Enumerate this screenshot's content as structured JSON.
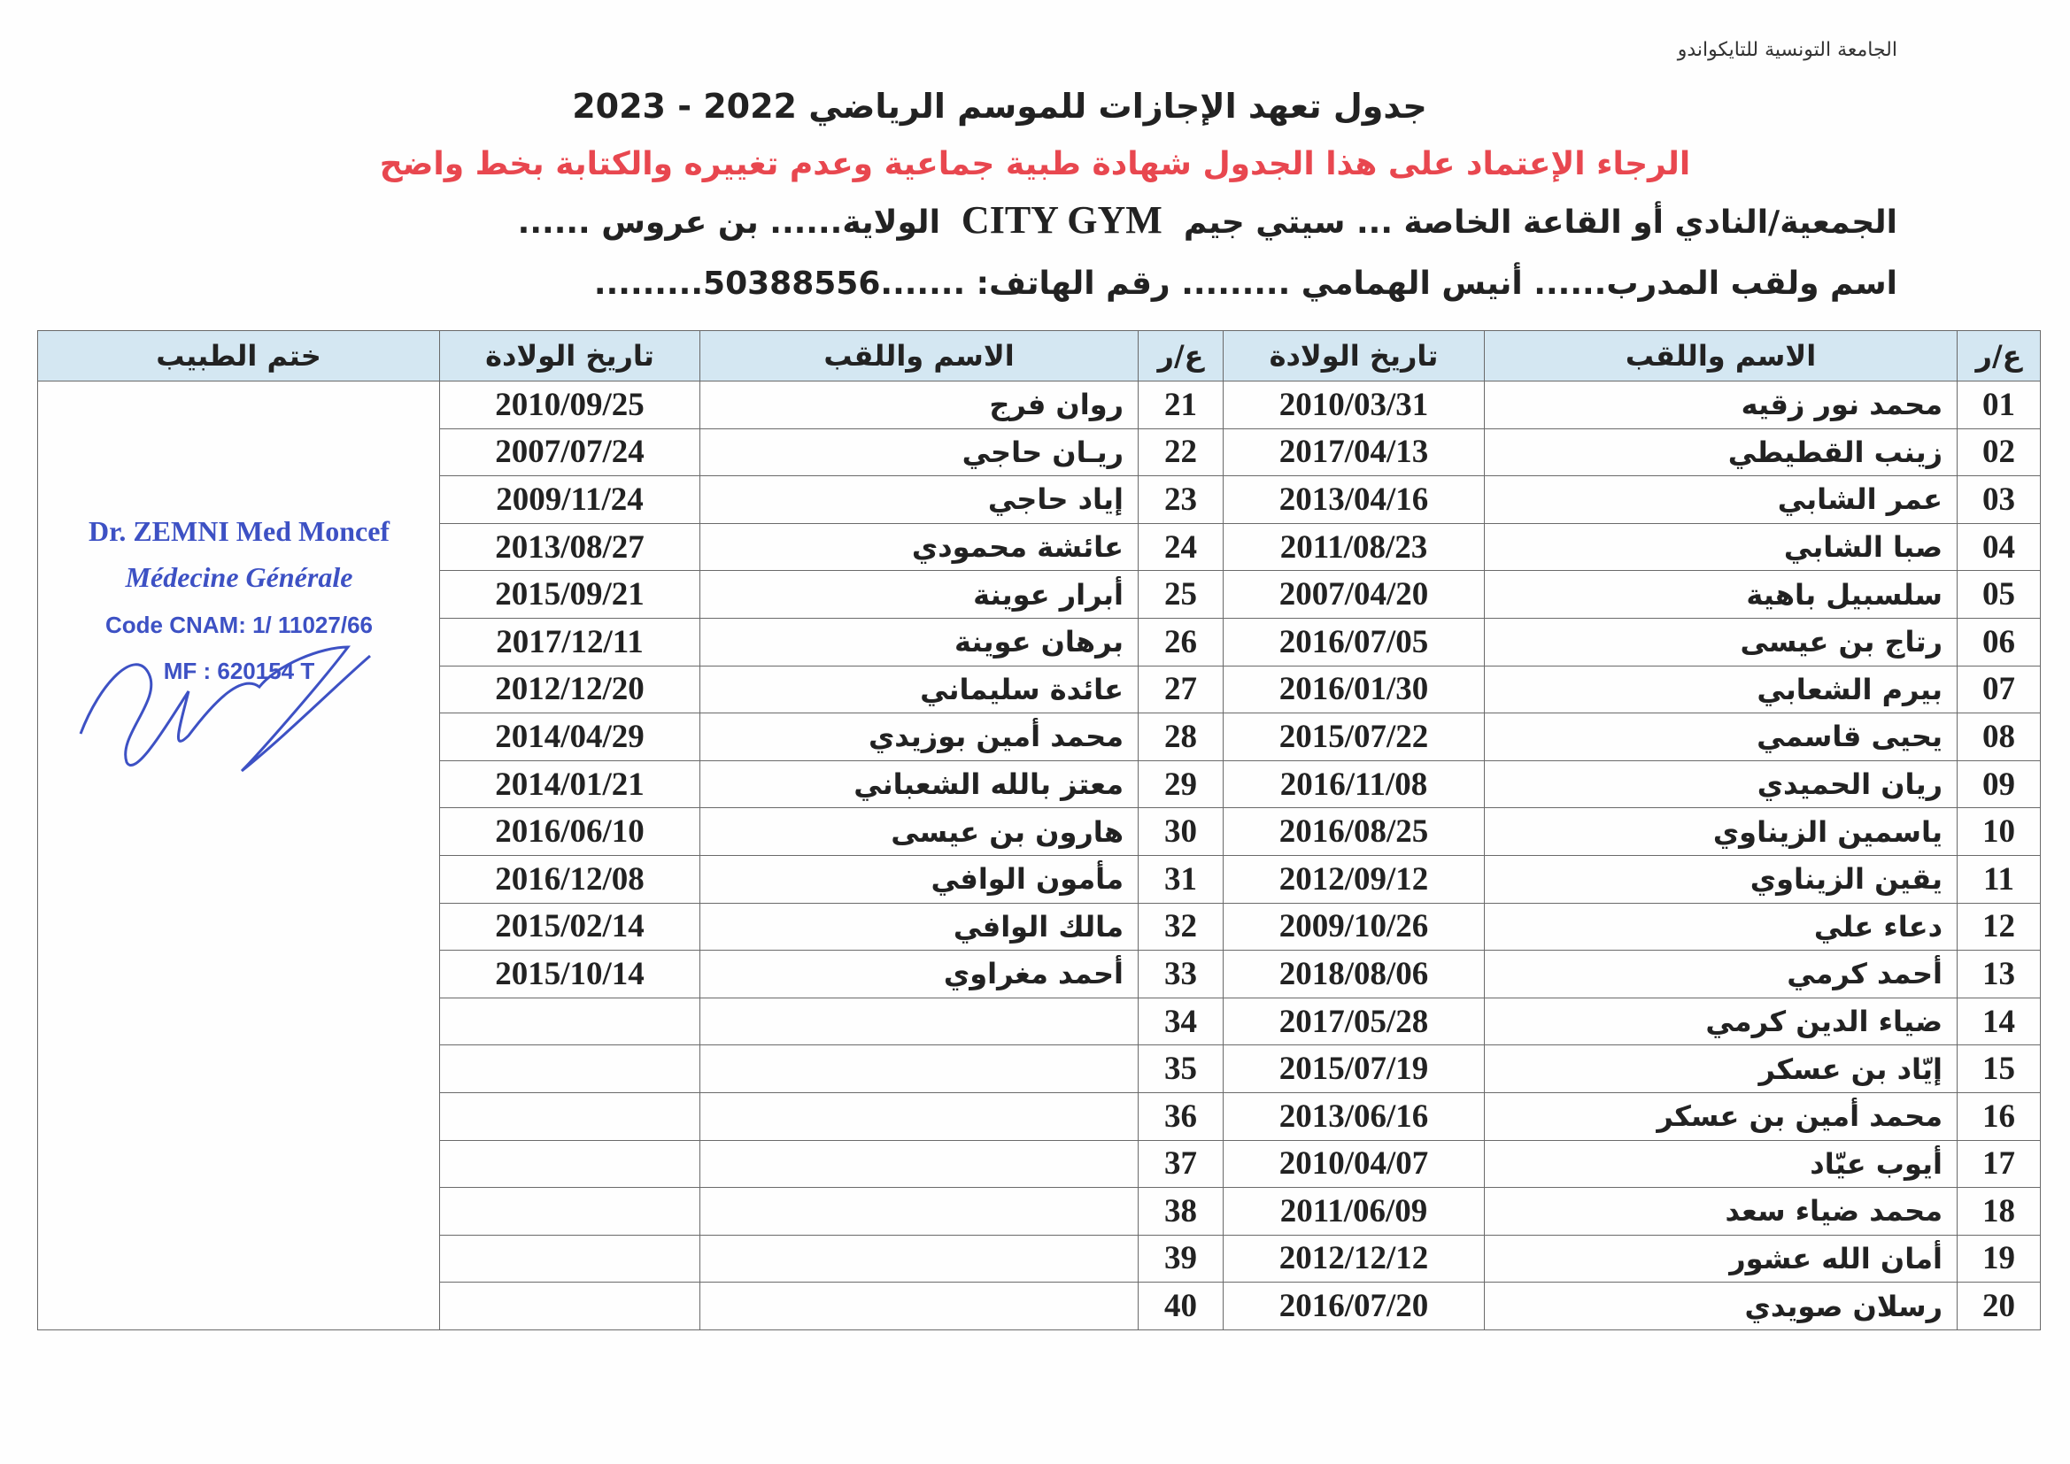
{
  "header": {
    "federation": "الجامعة التونسية للتايكواندو",
    "title": "جدول تعهد الإجازات للموسم الرياضي 2022 - 2023",
    "notice": "الرجاء الإعتماد على هذا الجدول شهادة طبية جماعية وعدم تغييره والكتابة بخط واضح",
    "club_line_prefix": "الجمعية/النادي أو القاعة الخاصة ... سيتي جيم",
    "club_latin": "CITY GYM",
    "club_line_suffix": "الولاية...... بن عروس ......",
    "coach_line": "اسم ولقب المدرب...... أنيس الهمامي ......... رقم الهاتف: .......50388556........."
  },
  "table": {
    "columns": {
      "num": "ع/ر",
      "name": "الاسم واللقب",
      "dob": "تاريخ الولادة",
      "stamp": "ختم الطبيب"
    },
    "left_group": [
      {
        "num": "01",
        "name": "محمد نور زقيه",
        "dob": "2010/03/31"
      },
      {
        "num": "02",
        "name": "زينب القطيطي",
        "dob": "2017/04/13"
      },
      {
        "num": "03",
        "name": "عمر الشابي",
        "dob": "2013/04/16"
      },
      {
        "num": "04",
        "name": "صبا الشابي",
        "dob": "2011/08/23"
      },
      {
        "num": "05",
        "name": "سلسبيل باهية",
        "dob": "2007/04/20"
      },
      {
        "num": "06",
        "name": "رتاج بن عيسى",
        "dob": "2016/07/05"
      },
      {
        "num": "07",
        "name": "بيرم الشعابي",
        "dob": "2016/01/30"
      },
      {
        "num": "08",
        "name": "يحيى قاسمي",
        "dob": "2015/07/22"
      },
      {
        "num": "09",
        "name": "ريان الحميدي",
        "dob": "2016/11/08"
      },
      {
        "num": "10",
        "name": "ياسمين الزيناوي",
        "dob": "2016/08/25"
      },
      {
        "num": "11",
        "name": "يقين الزيناوي",
        "dob": "2012/09/12"
      },
      {
        "num": "12",
        "name": "دعاء علي",
        "dob": "2009/10/26"
      },
      {
        "num": "13",
        "name": "أحمد كرمي",
        "dob": "2018/08/06"
      },
      {
        "num": "14",
        "name": "ضياء الدين كرمي",
        "dob": "2017/05/28"
      },
      {
        "num": "15",
        "name": "إيّاد بن عسكر",
        "dob": "2015/07/19"
      },
      {
        "num": "16",
        "name": "محمد أمين بن عسكر",
        "dob": "2013/06/16"
      },
      {
        "num": "17",
        "name": "أيوب عيّاد",
        "dob": "2010/04/07"
      },
      {
        "num": "18",
        "name": "محمد ضياء سعد",
        "dob": "2011/06/09"
      },
      {
        "num": "19",
        "name": "أمان الله عشور",
        "dob": "2012/12/12"
      },
      {
        "num": "20",
        "name": "رسلان صويدي",
        "dob": "2016/07/20"
      }
    ],
    "right_group": [
      {
        "num": "21",
        "name": "روان فرج",
        "dob": "2010/09/25"
      },
      {
        "num": "22",
        "name": "ريـان حاجي",
        "dob": "2007/07/24"
      },
      {
        "num": "23",
        "name": "إياد حاجي",
        "dob": "2009/11/24"
      },
      {
        "num": "24",
        "name": "عائشة محمودي",
        "dob": "2013/08/27"
      },
      {
        "num": "25",
        "name": "أبرار عوينة",
        "dob": "2015/09/21"
      },
      {
        "num": "26",
        "name": "برهان عوينة",
        "dob": "2017/12/11"
      },
      {
        "num": "27",
        "name": "عائدة سليماني",
        "dob": "2012/12/20"
      },
      {
        "num": "28",
        "name": "محمد أمين بوزيدي",
        "dob": "2014/04/29"
      },
      {
        "num": "29",
        "name": "معتز بالله الشعباني",
        "dob": "2014/01/21"
      },
      {
        "num": "30",
        "name": "هارون بن عيسى",
        "dob": "2016/06/10"
      },
      {
        "num": "31",
        "name": "مأمون الوافي",
        "dob": "2016/12/08"
      },
      {
        "num": "32",
        "name": "مالك الوافي",
        "dob": "2015/02/14"
      },
      {
        "num": "33",
        "name": "أحمد مغراوي",
        "dob": "2015/10/14"
      },
      {
        "num": "34",
        "name": "",
        "dob": ""
      },
      {
        "num": "35",
        "name": "",
        "dob": ""
      },
      {
        "num": "36",
        "name": "",
        "dob": ""
      },
      {
        "num": "37",
        "name": "",
        "dob": ""
      },
      {
        "num": "38",
        "name": "",
        "dob": ""
      },
      {
        "num": "39",
        "name": "",
        "dob": ""
      },
      {
        "num": "40",
        "name": "",
        "dob": ""
      }
    ]
  },
  "stamp": {
    "line1": "Dr. ZEMNI Med Moncef",
    "line2": "Médecine Générale",
    "line3": "Code CNAM: 1/ 11027/66",
    "line4": "MF : 620154 T",
    "color": "#3d51c4"
  },
  "colors": {
    "notice": "#e8474f",
    "header_bg": "#d4e7f2"
  }
}
